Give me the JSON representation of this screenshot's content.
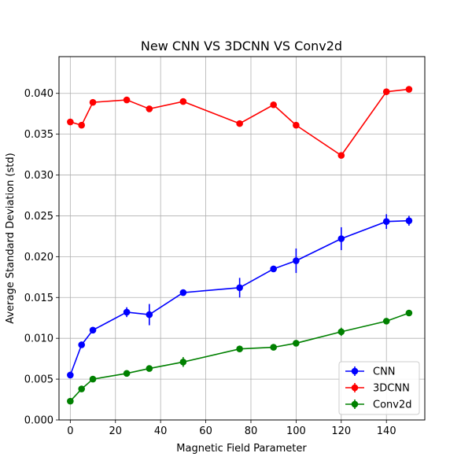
{
  "chart_data": {
    "type": "line",
    "title": "New CNN VS 3DCNN VS Conv2d",
    "xlabel": "Magnetic Field Parameter",
    "ylabel": "Average Standard Deviation (std)",
    "xlim": [
      -5,
      157
    ],
    "ylim": [
      0,
      0.0445
    ],
    "xticks": [
      0,
      20,
      40,
      60,
      80,
      100,
      120,
      140
    ],
    "xtick_labels": [
      "0",
      "20",
      "40",
      "60",
      "80",
      "100",
      "120",
      "140"
    ],
    "yticks": [
      0,
      0.005,
      0.01,
      0.015,
      0.02,
      0.025,
      0.03,
      0.035,
      0.04
    ],
    "ytick_labels": [
      "0.000",
      "0.005",
      "0.010",
      "0.015",
      "0.020",
      "0.025",
      "0.030",
      "0.035",
      "0.040"
    ],
    "grid": true,
    "legend_position": "lower-right",
    "x": [
      0,
      5,
      10,
      25,
      35,
      50,
      75,
      90,
      100,
      120,
      140,
      150
    ],
    "series": [
      {
        "name": "CNN",
        "color": "#0000ff",
        "values": [
          0.0055,
          0.0092,
          0.011,
          0.0132,
          0.0129,
          0.0156,
          0.0162,
          0.0185,
          0.0195,
          0.0222,
          0.0243,
          0.0244
        ],
        "errors": [
          0.0004,
          0.0003,
          0.0003,
          0.0006,
          0.0013,
          0.0003,
          0.0012,
          0.0003,
          0.0015,
          0.0014,
          0.0009,
          0.0006
        ]
      },
      {
        "name": "3DCNN",
        "color": "#ff0000",
        "values": [
          0.0365,
          0.0361,
          0.0389,
          0.0392,
          0.0381,
          0.039,
          0.0363,
          0.0386,
          0.0361,
          0.0324,
          0.0402,
          0.0405
        ],
        "errors": [
          0.0002,
          0.0002,
          0.0002,
          0.0002,
          0.0002,
          0.0002,
          0.0002,
          0.0002,
          0.0002,
          0.0002,
          0.0002,
          0.0002
        ]
      },
      {
        "name": "Conv2d",
        "color": "#008000",
        "values": [
          0.0023,
          0.0038,
          0.005,
          0.0057,
          0.0063,
          0.0071,
          0.0087,
          0.0089,
          0.0094,
          0.0108,
          0.0121,
          0.0131
        ],
        "errors": [
          0.0002,
          0.0002,
          0.0002,
          0.0002,
          0.0002,
          0.0006,
          0.0002,
          0.0002,
          0.0002,
          0.0005,
          0.0003,
          0.0002
        ]
      }
    ]
  }
}
